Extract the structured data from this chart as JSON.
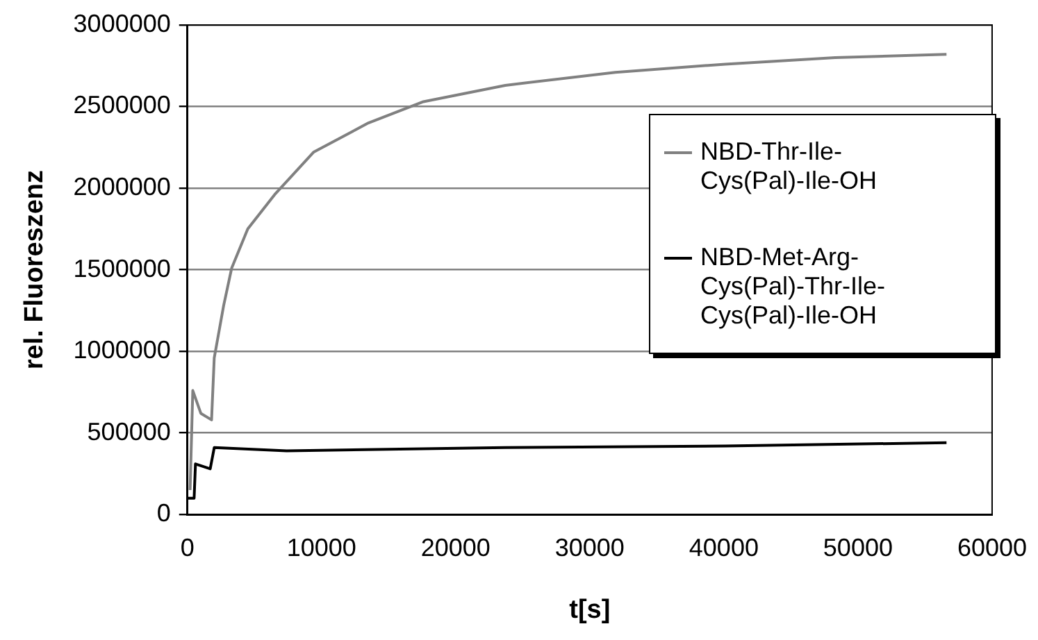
{
  "chart_data": {
    "type": "line",
    "xlabel": "t[s]",
    "ylabel": "rel. Fluoreszenz",
    "xlim": [
      0,
      60000
    ],
    "xticks": [
      0,
      10000,
      20000,
      30000,
      40000,
      50000,
      60000
    ],
    "ylim": [
      0,
      3000000
    ],
    "yticks": [
      0,
      500000,
      1000000,
      1500000,
      2000000,
      2500000,
      3000000
    ],
    "grid": "y",
    "legend": "right",
    "marker": "none",
    "line_style": "solid",
    "series": [
      {
        "name": "NBD-Thr-Ile-Cys(Pal)-Ile-OH",
        "color": "#808080",
        "x": [
          200,
          400,
          1000,
          1800,
          2000,
          2700,
          3300,
          4500,
          6500,
          9400,
          13500,
          17600,
          23700,
          31900,
          40100,
          48300,
          56600
        ],
        "values": [
          150000,
          760000,
          620000,
          580000,
          960000,
          1280000,
          1510000,
          1750000,
          1960000,
          2220000,
          2400000,
          2530000,
          2630000,
          2710000,
          2760000,
          2800000,
          2820000
        ]
      },
      {
        "name": "NBD-Met-Arg-Cys(Pal)-Thr-Ile-Cys(Pal)-Ile-OH",
        "color": "#000000",
        "x": [
          0,
          500,
          600,
          1700,
          2000,
          7400,
          23700,
          40100,
          56600
        ],
        "values": [
          100000,
          100000,
          310000,
          280000,
          410000,
          390000,
          410000,
          420000,
          440000
        ]
      }
    ]
  }
}
